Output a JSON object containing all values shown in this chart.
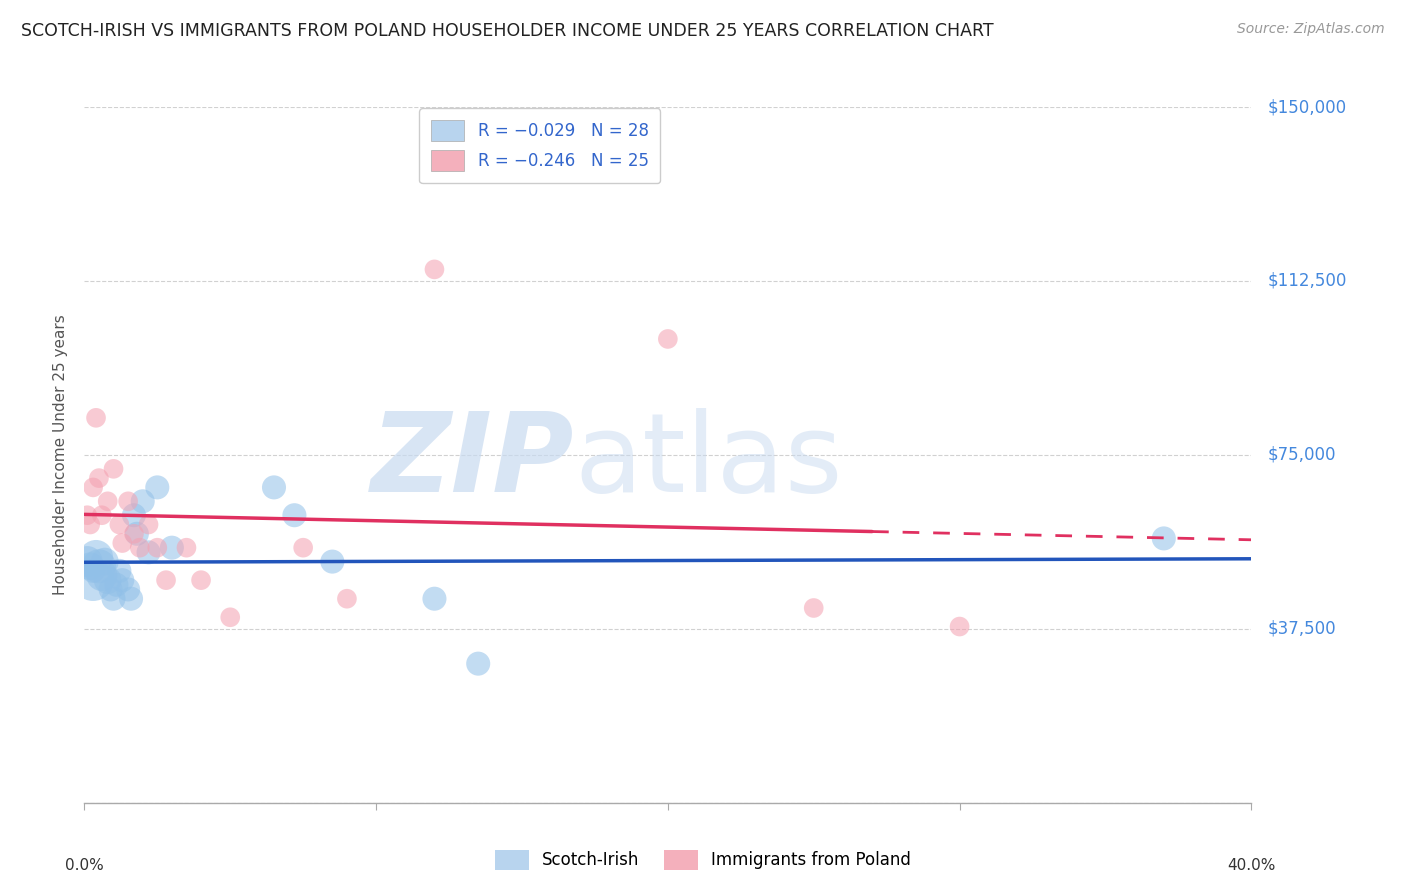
{
  "title": "SCOTCH-IRISH VS IMMIGRANTS FROM POLAND HOUSEHOLDER INCOME UNDER 25 YEARS CORRELATION CHART",
  "source": "Source: ZipAtlas.com",
  "ylabel": "Householder Income Under 25 years",
  "yticks": [
    0,
    37500,
    75000,
    112500,
    150000
  ],
  "ytick_labels": [
    "",
    "$37,500",
    "$75,000",
    "$112,500",
    "$150,000"
  ],
  "xlim": [
    0.0,
    0.4
  ],
  "ylim": [
    0,
    150000
  ],
  "scotch_irish": {
    "color": "#91c0e8",
    "line_color": "#2255bb",
    "x": [
      0.001,
      0.002,
      0.003,
      0.003,
      0.004,
      0.005,
      0.006,
      0.007,
      0.008,
      0.009,
      0.01,
      0.011,
      0.012,
      0.013,
      0.015,
      0.016,
      0.017,
      0.018,
      0.02,
      0.022,
      0.025,
      0.03,
      0.065,
      0.072,
      0.085,
      0.12,
      0.135,
      0.37
    ],
    "y": [
      52000,
      51000,
      50000,
      48000,
      53000,
      51000,
      49000,
      52000,
      48000,
      46000,
      44000,
      47000,
      50000,
      48000,
      46000,
      44000,
      62000,
      58000,
      65000,
      54000,
      68000,
      55000,
      68000,
      62000,
      52000,
      44000,
      30000,
      57000
    ],
    "sizes": [
      500,
      400,
      300,
      900,
      600,
      600,
      500,
      400,
      400,
      300,
      300,
      300,
      300,
      300,
      300,
      300,
      300,
      300,
      300,
      300,
      300,
      300,
      300,
      300,
      300,
      300,
      300,
      300
    ]
  },
  "poland": {
    "color": "#f4a0b0",
    "line_color": "#e03060",
    "x": [
      0.001,
      0.002,
      0.003,
      0.004,
      0.005,
      0.006,
      0.008,
      0.01,
      0.012,
      0.013,
      0.015,
      0.017,
      0.019,
      0.022,
      0.025,
      0.028,
      0.035,
      0.04,
      0.05,
      0.075,
      0.09,
      0.12,
      0.2,
      0.25,
      0.3
    ],
    "y": [
      62000,
      60000,
      68000,
      83000,
      70000,
      62000,
      65000,
      72000,
      60000,
      56000,
      65000,
      58000,
      55000,
      60000,
      55000,
      48000,
      55000,
      48000,
      40000,
      55000,
      44000,
      115000,
      100000,
      42000,
      38000
    ],
    "sizes": [
      200,
      200,
      200,
      200,
      200,
      200,
      200,
      200,
      200,
      200,
      200,
      200,
      200,
      200,
      200,
      200,
      200,
      200,
      200,
      200,
      200,
      200,
      200,
      200,
      200
    ]
  },
  "background_color": "#ffffff",
  "grid_color": "#cccccc",
  "title_color": "#222222",
  "axis_label_color": "#555555",
  "right_tick_color": "#4488dd",
  "source_color": "#999999",
  "watermark_color": "#d0dff0",
  "watermark_text": "ZIPatlas"
}
